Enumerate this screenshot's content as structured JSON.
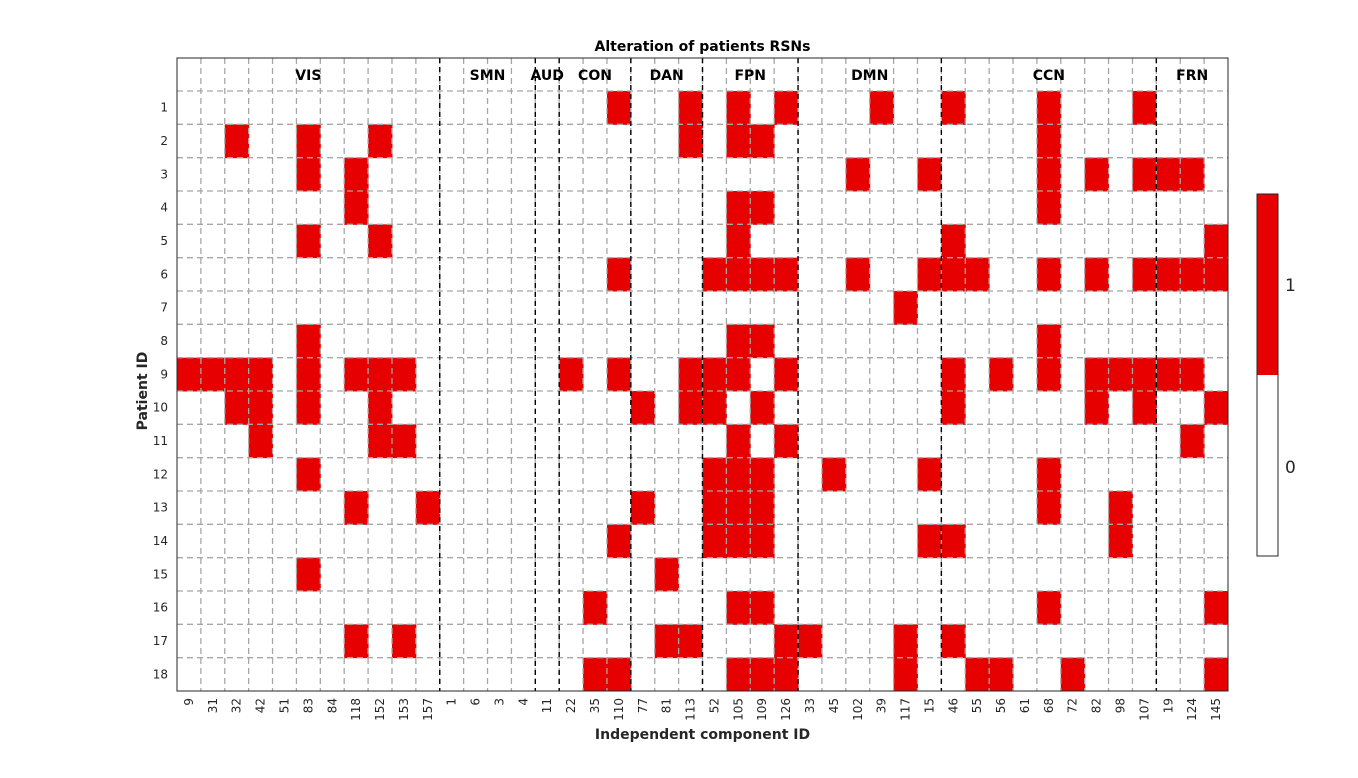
{
  "chart_data": {
    "type": "heatmap",
    "title": "Alteration of patients RSNs",
    "xlabel": "Independent component ID",
    "ylabel": "Patient ID",
    "x_ticks": [
      "9",
      "31",
      "32",
      "42",
      "51",
      "83",
      "84",
      "118",
      "152",
      "153",
      "157",
      "1",
      "6",
      "3",
      "4",
      "11",
      "22",
      "35",
      "110",
      "77",
      "81",
      "113",
      "52",
      "105",
      "109",
      "126",
      "33",
      "45",
      "102",
      "39",
      "117",
      "15",
      "46",
      "55",
      "56",
      "61",
      "68",
      "72",
      "82",
      "98",
      "107",
      "19",
      "124",
      "145"
    ],
    "y_ticks": [
      "1",
      "2",
      "3",
      "4",
      "5",
      "6",
      "7",
      "8",
      "9",
      "10",
      "11",
      "12",
      "13",
      "14",
      "15",
      "16",
      "17",
      "18"
    ],
    "groups": [
      {
        "label": "VIS",
        "start": 0,
        "end": 10
      },
      {
        "label": "SMN",
        "start": 11,
        "end": 14
      },
      {
        "label": "AUD",
        "start": 15,
        "end": 15
      },
      {
        "label": "CON",
        "start": 16,
        "end": 18
      },
      {
        "label": "DAN",
        "start": 19,
        "end": 21
      },
      {
        "label": "FPN",
        "start": 22,
        "end": 25
      },
      {
        "label": "DMN",
        "start": 26,
        "end": 31
      },
      {
        "label": "CCN",
        "start": 32,
        "end": 40
      },
      {
        "label": "FRN",
        "start": 41,
        "end": 43
      }
    ],
    "colorbar": {
      "ticks": [
        "1",
        "0"
      ],
      "colors": {
        "1": "#e60000",
        "0": "#ffffff"
      }
    },
    "grid": "dashed",
    "altered_cells": [
      [
        18,
        21,
        23,
        25,
        29,
        32,
        36,
        40
      ],
      [
        2,
        5,
        8,
        21,
        23,
        24,
        36
      ],
      [
        5,
        7,
        28,
        31,
        36,
        38,
        40,
        41,
        42
      ],
      [
        7,
        23,
        24,
        36
      ],
      [
        5,
        8,
        23,
        32,
        43
      ],
      [
        18,
        22,
        23,
        24,
        25,
        28,
        31,
        32,
        33,
        36,
        38,
        40,
        41,
        42,
        43
      ],
      [
        30
      ],
      [
        5,
        23,
        24,
        36
      ],
      [
        0,
        1,
        2,
        3,
        5,
        7,
        8,
        9,
        16,
        18,
        21,
        22,
        23,
        25,
        32,
        34,
        36,
        38,
        39,
        40,
        41,
        42
      ],
      [
        2,
        3,
        5,
        8,
        19,
        21,
        22,
        24,
        32,
        38,
        40,
        43
      ],
      [
        3,
        8,
        9,
        23,
        25,
        42
      ],
      [
        5,
        22,
        23,
        24,
        27,
        31,
        36
      ],
      [
        7,
        10,
        19,
        22,
        23,
        24,
        36,
        39
      ],
      [
        18,
        22,
        23,
        24,
        31,
        32,
        39
      ],
      [
        5,
        20
      ],
      [
        17,
        23,
        24,
        36,
        43
      ],
      [
        7,
        9,
        20,
        21,
        25,
        26,
        30,
        32
      ],
      [
        17,
        18,
        23,
        24,
        25,
        30,
        33,
        34,
        37,
        43
      ]
    ]
  }
}
